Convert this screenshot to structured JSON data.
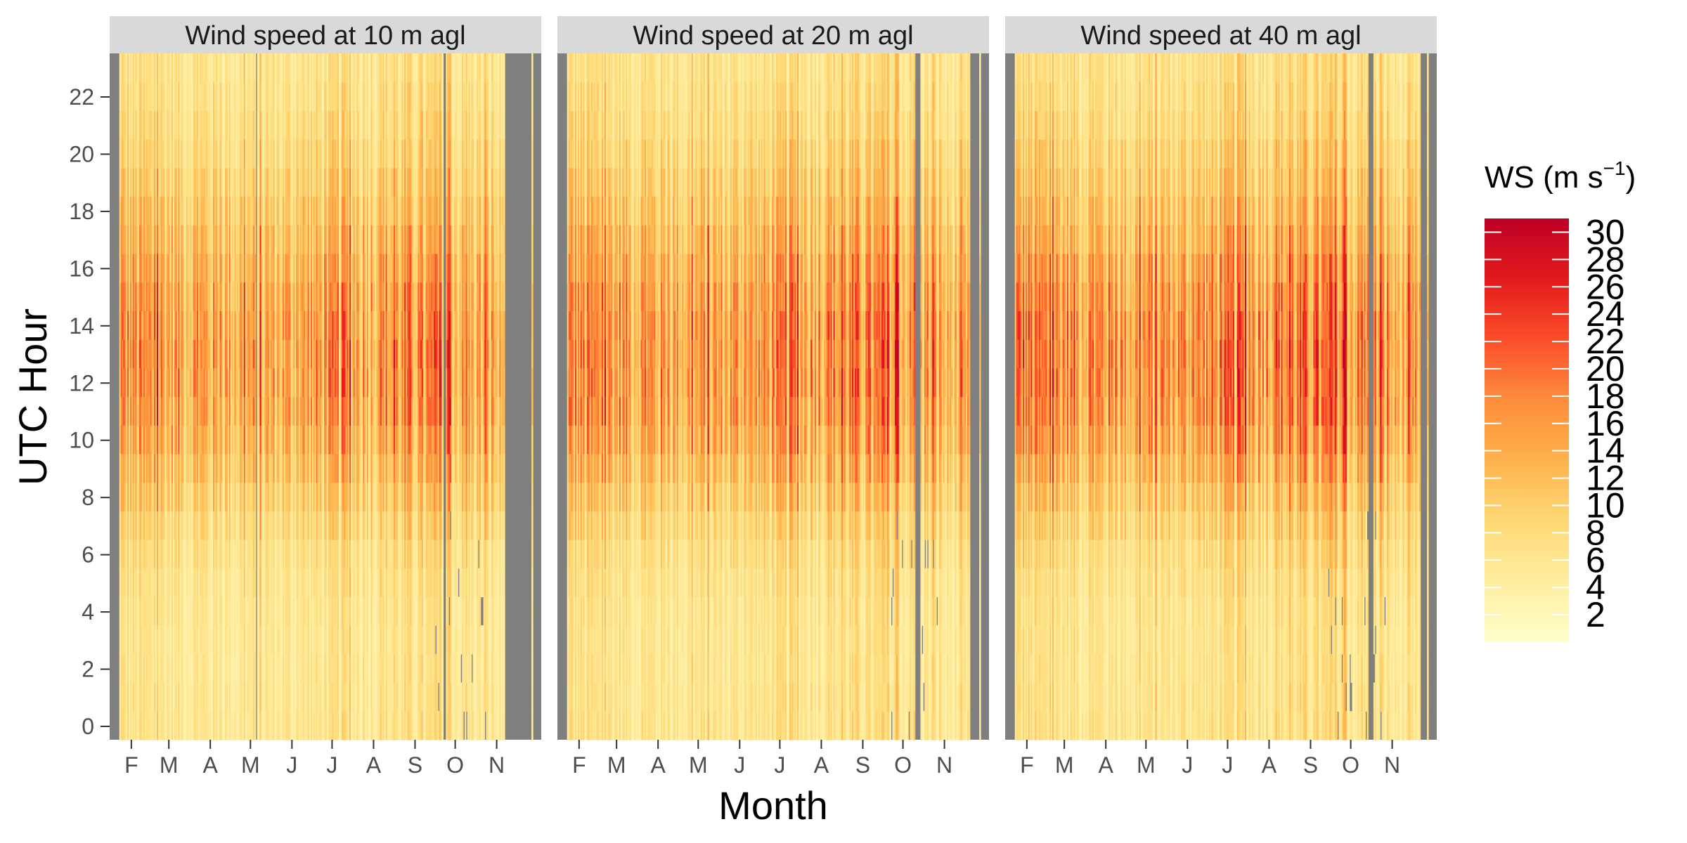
{
  "chart_data": {
    "type": "heatmap",
    "title": "",
    "xlabel": "Month",
    "ylabel": "UTC Hour",
    "x_tick_labels": [
      "F",
      "M",
      "A",
      "M",
      "J",
      "J",
      "A",
      "S",
      "O",
      "N"
    ],
    "y_ticks": [
      0,
      2,
      4,
      6,
      8,
      10,
      12,
      14,
      16,
      18,
      20,
      22
    ],
    "y_range": [
      0,
      23
    ],
    "x_range_days": [
      20,
      331
    ],
    "missing_color": "#7f7f7f",
    "legend": {
      "title_main": "WS (m s",
      "title_sup": "−1",
      "title_close": ")",
      "range": [
        0,
        31
      ],
      "labels": [
        "30",
        "28",
        "26",
        "24",
        "22",
        "20",
        "18",
        "16",
        "14",
        "12",
        "10",
        "8",
        "6",
        "4",
        "2"
      ],
      "colors": [
        "#ffffcc",
        "#ffeda0",
        "#fed976",
        "#feb24c",
        "#fd8d3c",
        "#fc4e2a",
        "#e31a1c",
        "#bd0026"
      ],
      "placement": "right"
    },
    "panels": [
      {
        "name": "Wind speed at 10 m agl",
        "diurnal_profile": [
          5.5,
          5.4,
          5.3,
          5.3,
          5.4,
          5.8,
          6.5,
          7.6,
          9.0,
          10.6,
          12.1,
          13.2,
          13.8,
          13.9,
          13.6,
          12.9,
          11.9,
          10.7,
          9.5,
          8.5,
          7.6,
          6.9,
          6.3,
          5.9
        ],
        "seasonal_factor": [
          1.15,
          1.1,
          1.05,
          1.0,
          1.0,
          1.05,
          1.12,
          1.15,
          1.12,
          1.0,
          0.85,
          0.75
        ],
        "missing_days": [
          20,
          21,
          22,
          125,
          265,
          266,
          311,
          312,
          313,
          314,
          315,
          316,
          317,
          318,
          319,
          320,
          321,
          322,
          323,
          324,
          325,
          326,
          327,
          328,
          329,
          330
        ]
      },
      {
        "name": "Wind speed at 20 m agl",
        "diurnal_profile": [
          5.8,
          5.7,
          5.6,
          5.6,
          5.7,
          6.1,
          6.8,
          7.9,
          9.4,
          11.1,
          12.7,
          13.9,
          14.5,
          14.6,
          14.3,
          13.6,
          12.5,
          11.2,
          10.0,
          8.9,
          8.0,
          7.2,
          6.6,
          6.2
        ],
        "seasonal_factor": [
          1.15,
          1.1,
          1.05,
          1.0,
          1.0,
          1.05,
          1.12,
          1.15,
          1.12,
          1.0,
          0.85,
          0.75
        ],
        "missing_days": [
          20,
          21,
          22,
          283,
          284,
          285,
          286,
          324,
          325,
          326,
          327,
          328,
          329,
          330
        ]
      },
      {
        "name": "Wind speed at 40 m agl",
        "diurnal_profile": [
          6.0,
          5.9,
          5.8,
          5.8,
          5.9,
          6.4,
          7.2,
          8.4,
          10.0,
          11.8,
          13.5,
          14.7,
          15.4,
          15.5,
          15.2,
          14.4,
          13.2,
          11.8,
          10.5,
          9.3,
          8.4,
          7.5,
          6.9,
          6.4
        ],
        "seasonal_factor": [
          1.15,
          1.1,
          1.05,
          1.0,
          1.0,
          1.05,
          1.12,
          1.15,
          1.12,
          1.0,
          0.85,
          0.75
        ],
        "missing_days": [
          20,
          21,
          22,
          287,
          288,
          289,
          290,
          326,
          327,
          328,
          329,
          330
        ]
      }
    ]
  }
}
